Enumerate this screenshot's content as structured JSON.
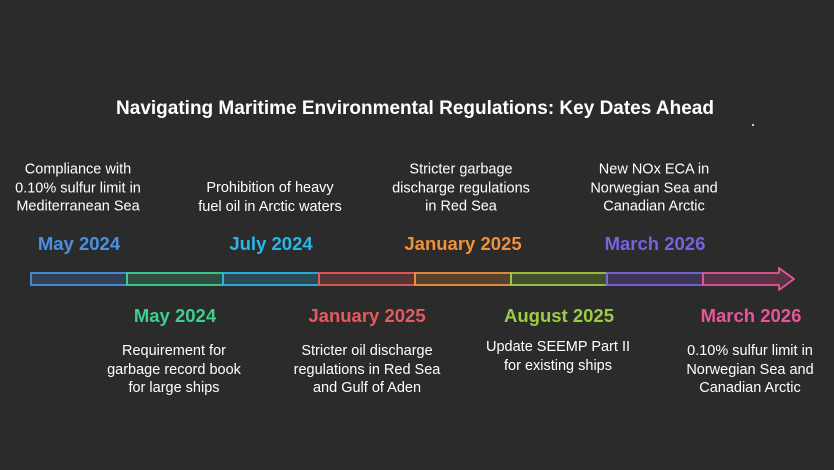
{
  "title": "Navigating Maritime Environmental Regulations: Key Dates Ahead",
  "events": [
    {
      "date": "May 2024",
      "description": "Compliance with 0.10% sulfur limit in Mediterranean Sea",
      "color": "#4a90e2",
      "position": "top"
    },
    {
      "date": "May 2024",
      "description": "Requirement for garbage record book for large ships",
      "color": "#3ecf8e",
      "position": "bottom"
    },
    {
      "date": "July 2024",
      "description": "Prohibition of heavy fuel oil in Arctic waters",
      "color": "#29b6e8",
      "position": "top"
    },
    {
      "date": "January 2025",
      "description": "Stricter oil discharge regulations in Red Sea and Gulf of Aden",
      "color": "#e8595d",
      "position": "bottom"
    },
    {
      "date": "January 2025",
      "description": "Stricter garbage discharge regulations in Red Sea",
      "color": "#f0913a",
      "position": "top"
    },
    {
      "date": "August 2025",
      "description": "Update SEEMP Part II for existing ships",
      "color": "#9ccc3f",
      "position": "bottom"
    },
    {
      "date": "March 2026",
      "description": "New NOx ECA in Norwegian Sea and Canadian Arctic",
      "color": "#7b61e0",
      "position": "top"
    },
    {
      "date": "March 2026",
      "description": "0.10% sulfur limit in Norwegian Sea and Canadian Arctic",
      "color": "#e8559a",
      "position": "bottom"
    }
  ]
}
